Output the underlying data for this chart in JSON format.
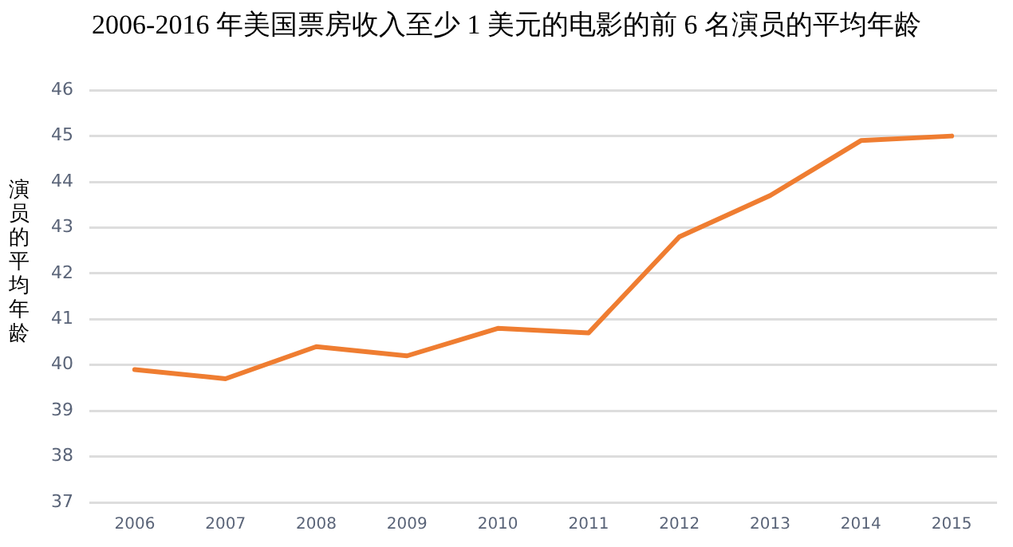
{
  "chart_data": {
    "type": "line",
    "title": "2006-2016 年美国票房收入至少 1 美元的电影的前 6 名演员的平均年龄",
    "ylabel": "演员的平均年龄",
    "categories": [
      "2006",
      "2007",
      "2008",
      "2009",
      "2010",
      "2011",
      "2012",
      "2013",
      "2014",
      "2015"
    ],
    "series": [
      {
        "color": "#ef7d31",
        "values": [
          39.9,
          39.7,
          40.4,
          40.2,
          40.8,
          40.7,
          42.8,
          43.7,
          44.9,
          45.0
        ]
      }
    ],
    "ylim": [
      37,
      46
    ],
    "yticks": [
      37,
      38,
      39,
      40,
      41,
      42,
      43,
      44,
      45,
      46
    ],
    "grid": "y",
    "legend": false,
    "marker": "none",
    "line_style": "solid"
  }
}
